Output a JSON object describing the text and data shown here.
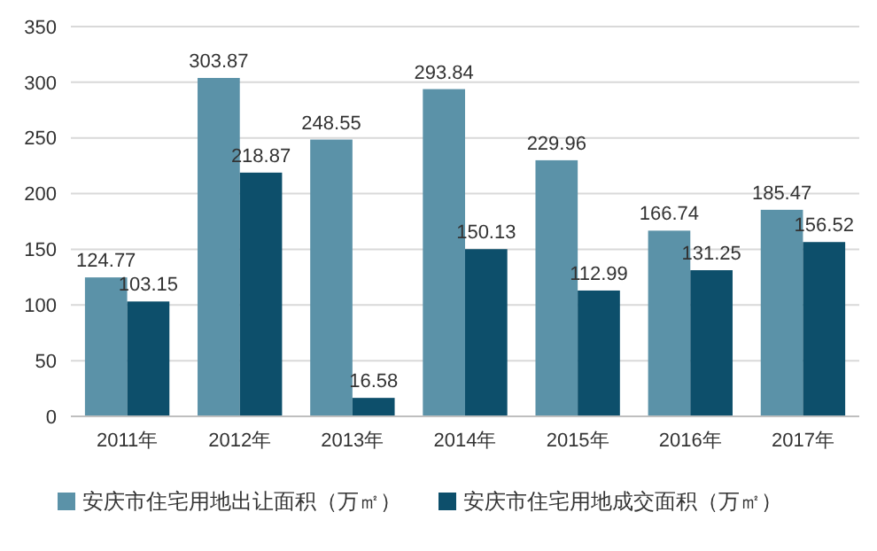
{
  "chart_data": {
    "type": "bar",
    "categories": [
      "2011年",
      "2012年",
      "2013年",
      "2014年",
      "2015年",
      "2016年",
      "2017年"
    ],
    "series": [
      {
        "name": "安庆市住宅用地出让面积（万㎡）",
        "color": "#5b92a8",
        "values": [
          124.77,
          303.87,
          248.55,
          293.84,
          229.96,
          166.74,
          185.47
        ]
      },
      {
        "name": "安庆市住宅用地成交面积（万㎡）",
        "color": "#0d4f6b",
        "values": [
          103.15,
          218.87,
          16.58,
          150.13,
          112.99,
          131.25,
          156.52
        ]
      }
    ],
    "ylim": [
      0,
      350
    ],
    "yticks": [
      0,
      50,
      100,
      150,
      200,
      250,
      300,
      350
    ],
    "grid": "y",
    "legend": "bottom",
    "data_labels": true
  }
}
